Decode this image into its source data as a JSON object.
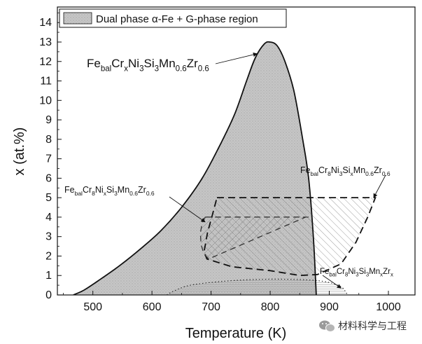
{
  "chart_data": {
    "type": "area",
    "xlabel": "Temperature (K)",
    "ylabel": "x (at.%)",
    "xlim": [
      440,
      1045
    ],
    "ylim": [
      0,
      14.8
    ],
    "xticks": [
      500,
      600,
      700,
      800,
      900,
      1000
    ],
    "yticks": [
      0,
      1,
      2,
      3,
      4,
      5,
      6,
      7,
      8,
      9,
      10,
      11,
      12,
      13,
      14
    ],
    "legend": {
      "placement": "top-left",
      "label": "Dual phase α-Fe + G-phase region"
    },
    "series": [
      {
        "name": "FebalCrxNi3Si3Mn0.6Zr0.6",
        "style": "filled-dotted-gray",
        "points": [
          [
            467,
            0
          ],
          [
            485,
            0.25
          ],
          [
            510,
            0.75
          ],
          [
            545,
            1.5
          ],
          [
            580,
            2.35
          ],
          [
            615,
            3.3
          ],
          [
            650,
            4.5
          ],
          [
            685,
            6.0
          ],
          [
            715,
            7.7
          ],
          [
            740,
            9.3
          ],
          [
            760,
            11.0
          ],
          [
            775,
            12.2
          ],
          [
            790,
            12.9
          ],
          [
            800,
            13.0
          ],
          [
            812,
            12.8
          ],
          [
            825,
            12.0
          ],
          [
            840,
            10.5
          ],
          [
            855,
            8.0
          ],
          [
            865,
            6.0
          ],
          [
            873,
            3.0
          ],
          [
            878,
            0
          ]
        ]
      },
      {
        "name": "FebalCr8NixSi3Mn0.6Zr0.6",
        "style": "dashed-hatched",
        "points": [
          [
            690,
            4.0
          ],
          [
            685,
            3.7
          ],
          [
            682,
            3.2
          ],
          [
            683,
            2.6
          ],
          [
            688,
            2.1
          ],
          [
            696,
            1.85
          ],
          [
            860,
            4.0
          ]
        ]
      },
      {
        "name": "FebalCr8Ni3SixMn0.6Zr0.6",
        "style": "dashed-hatched",
        "points": [
          [
            710,
            5.0
          ],
          [
            978,
            5.0
          ],
          [
            965,
            4.0
          ],
          [
            945,
            2.7
          ],
          [
            920,
            1.6
          ],
          [
            880,
            1.05
          ],
          [
            850,
            1.0
          ],
          [
            800,
            1.25
          ],
          [
            735,
            1.45
          ],
          [
            693,
            1.85
          ],
          [
            688,
            2.2
          ],
          [
            694,
            3.2
          ],
          [
            703,
            4.2
          ]
        ]
      },
      {
        "name": "FebalCr8Ni3Si3MnxZrx",
        "style": "dotted-hatched",
        "points": [
          [
            625,
            0
          ],
          [
            637,
            0.2
          ],
          [
            665,
            0.5
          ],
          [
            720,
            0.7
          ],
          [
            780,
            0.8
          ],
          [
            840,
            0.8
          ],
          [
            890,
            0.7
          ],
          [
            918,
            0.45
          ],
          [
            928,
            0.15
          ],
          [
            930,
            0
          ]
        ]
      }
    ],
    "annotations": [
      {
        "base": "Fe",
        "sub1": "bal",
        "t2": "Cr",
        "sub2": "x",
        "t3": "Ni",
        "sub3": "3",
        "t4": "Si",
        "sub4": "3",
        "t5": "Mn",
        "sub5": "0.6",
        "t6": "Zr",
        "sub6": "0.6"
      },
      {
        "base": "Fe",
        "sub1": "bal",
        "t2": "Cr",
        "sub2": "8",
        "t3": "Ni",
        "sub3": "3",
        "t4": "Si",
        "sub4": "x",
        "t5": "Mn",
        "sub5": "0.6",
        "t6": "Zr",
        "sub6": "0.6"
      },
      {
        "base": "Fe",
        "sub1": "bal",
        "t2": "Cr",
        "sub2": "8",
        "t3": "Ni",
        "sub3": "x",
        "t4": "Si",
        "sub4": "3",
        "t5": "Mn",
        "sub5": "0.6",
        "t6": "Zr",
        "sub6": "0.6"
      },
      {
        "base": "Fe",
        "sub1": "bal",
        "t2": "Cr",
        "sub2": "8",
        "t3": "Ni",
        "sub3": "3",
        "t4": "Si",
        "sub4": "3",
        "t5": "Mn",
        "sub5": "x",
        "t6": "Zr",
        "sub6": "x"
      }
    ]
  },
  "watermark": {
    "text": "材料科学与工程",
    "icon": "wechat-icon"
  },
  "colors": {
    "fill": "#c8c8c8",
    "line": "#111111",
    "background": "#ffffff"
  }
}
